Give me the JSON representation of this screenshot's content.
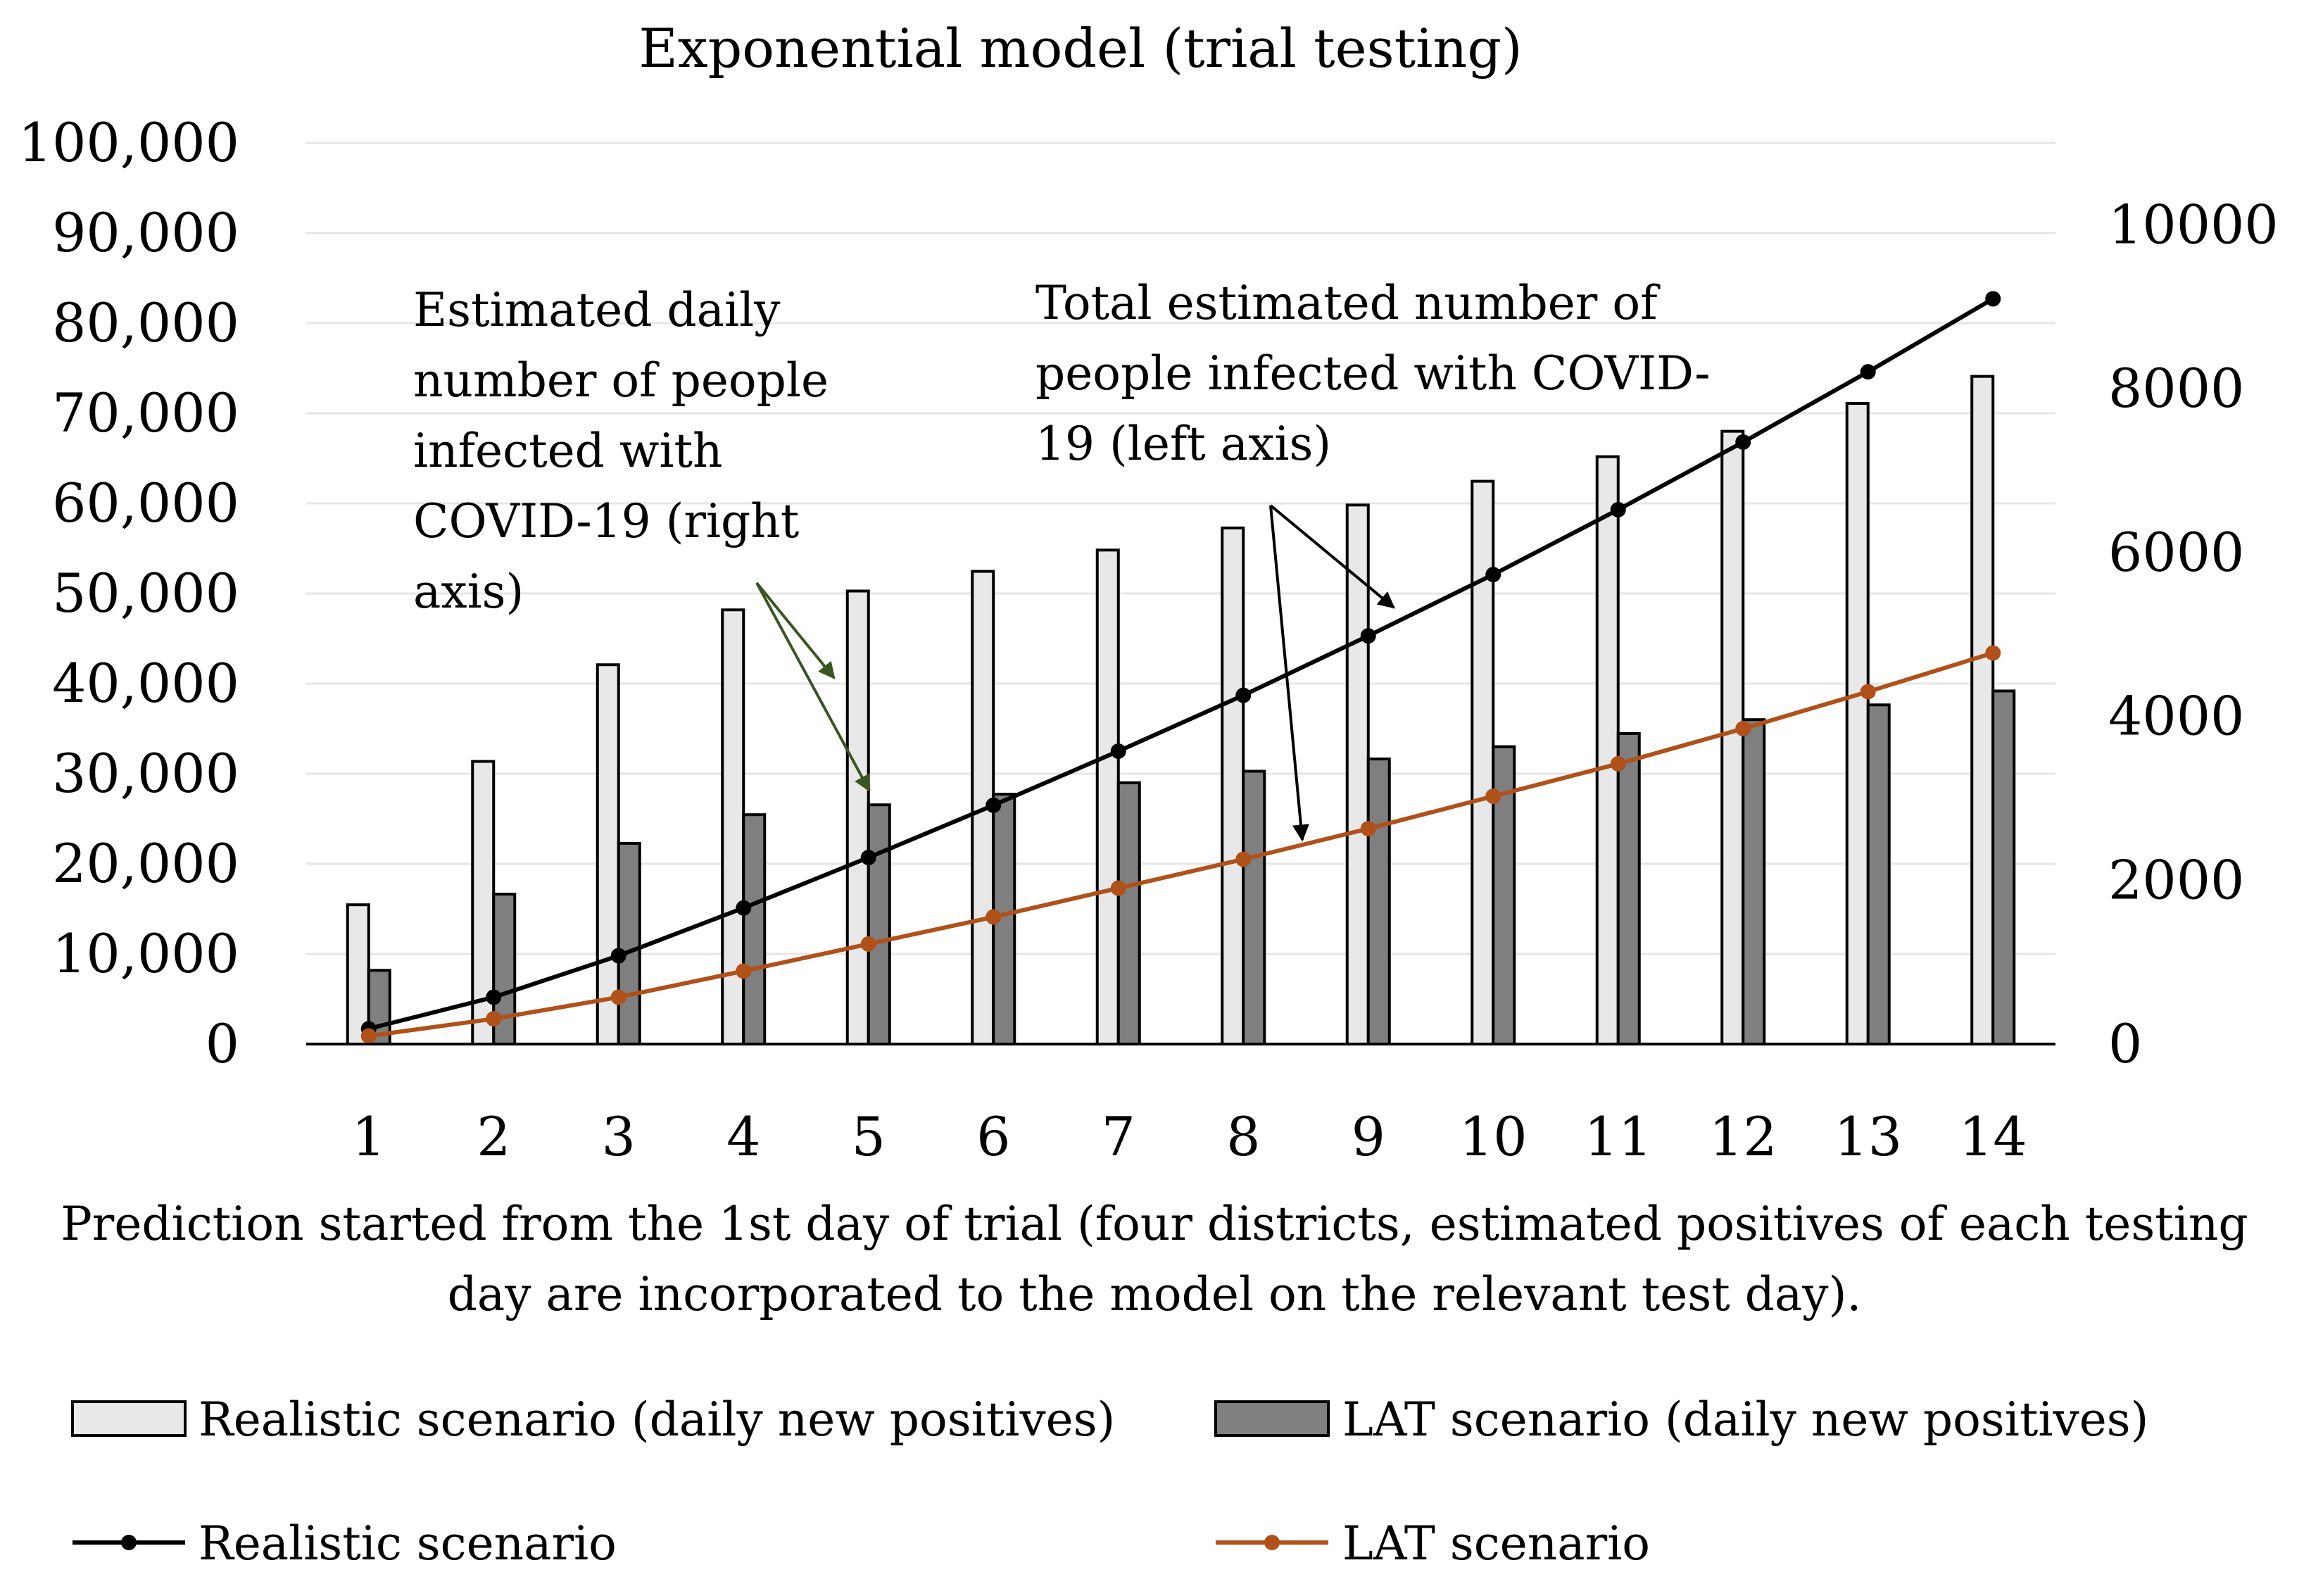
{
  "chart_data": {
    "type": "bar",
    "title": "Exponential model (trial testing)",
    "xlabel_lines": [
      "Prediction started from the 1st day of trial (four districts, estimated positives of each testing",
      "day are incorporated to the model on the relevant test day)."
    ],
    "categories": [
      "1",
      "2",
      "3",
      "4",
      "5",
      "6",
      "7",
      "8",
      "9",
      "10",
      "11",
      "12",
      "13",
      "14"
    ],
    "left_axis": {
      "ylim": [
        0,
        100000
      ],
      "ticks": [
        0,
        10000,
        20000,
        30000,
        40000,
        50000,
        60000,
        70000,
        80000,
        90000,
        100000
      ],
      "tick_labels": [
        "0",
        "10,000",
        "20,000",
        "30,000",
        "40,000",
        "50,000",
        "60,000",
        "70,000",
        "80,000",
        "90,000",
        "100,000"
      ]
    },
    "right_axis": {
      "ylim": [
        0,
        11000
      ],
      "ticks": [
        0,
        2000,
        4000,
        6000,
        8000,
        10000
      ],
      "tick_labels": [
        "0",
        "2000",
        "4000",
        "6000",
        "8000",
        "10000"
      ]
    },
    "grid": true,
    "bar_series": [
      {
        "name": "Realistic scenario (daily new positives)",
        "axis": "right",
        "color": "#e8e8e8",
        "values": [
          1700,
          3450,
          4630,
          5300,
          5530,
          5770,
          6030,
          6300,
          6580,
          6870,
          7170,
          7480,
          7820,
          8150
        ]
      },
      {
        "name": "LAT scenario (daily new positives)",
        "axis": "right",
        "color": "#7f7f7f",
        "values": [
          900,
          1830,
          2450,
          2800,
          2920,
          3050,
          3190,
          3330,
          3480,
          3630,
          3790,
          3960,
          4140,
          4310
        ]
      }
    ],
    "line_series": [
      {
        "name": "Realistic scenario",
        "axis": "left",
        "color": "#000000",
        "values": [
          1700,
          5200,
          9800,
          15100,
          20700,
          26500,
          32500,
          38700,
          45300,
          52100,
          59300,
          66800,
          74600,
          82700
        ]
      },
      {
        "name": "LAT scenario",
        "axis": "left",
        "color": "#b0511a",
        "values": [
          900,
          2800,
          5200,
          8100,
          11100,
          14100,
          17300,
          20500,
          23900,
          27500,
          31100,
          35000,
          39100,
          43400
        ]
      }
    ],
    "annotations": [
      {
        "id": "daily",
        "lines": [
          "Estimated daily",
          "number of people",
          "infected with",
          "COVID-19 (right",
          "axis)"
        ],
        "color": "#375623"
      },
      {
        "id": "total",
        "lines": [
          "Total estimated number of",
          "people infected with COVID-",
          "19 (left axis)"
        ],
        "color": "#000000"
      }
    ]
  }
}
